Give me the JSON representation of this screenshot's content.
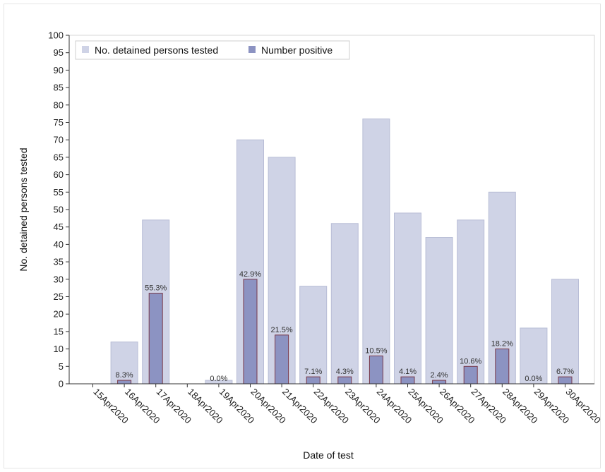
{
  "chart_data": {
    "type": "bar",
    "xlabel": "Date of test",
    "ylabel": "No. detained persons tested",
    "ylim": [
      0,
      100
    ],
    "yticks": [
      0,
      5,
      10,
      15,
      20,
      25,
      30,
      35,
      40,
      45,
      50,
      55,
      60,
      65,
      70,
      75,
      80,
      85,
      90,
      95,
      100
    ],
    "categories": [
      "15Apr2020",
      "16Apr2020",
      "17Apr2020",
      "18Apr2020",
      "19Apr2020",
      "20Apr2020",
      "21Apr2020",
      "22Apr2020",
      "23Apr2020",
      "24Apr2020",
      "25Apr2020",
      "26Apr2020",
      "27Apr2020",
      "28Apr2020",
      "29Apr2020",
      "30Apr2020"
    ],
    "series": [
      {
        "name": "No. detained persons tested",
        "color": "#cfd3e6",
        "values": [
          0,
          12,
          47,
          0,
          1,
          70,
          65,
          28,
          46,
          76,
          49,
          42,
          47,
          55,
          16,
          30
        ]
      },
      {
        "name": "Number positive",
        "color": "#8c93c2",
        "values": [
          0,
          1,
          26,
          0,
          0,
          30,
          14,
          2,
          2,
          8,
          2,
          1,
          5,
          10,
          0,
          2
        ]
      }
    ],
    "data_labels": [
      "",
      "8.3%",
      "55.3%",
      "",
      "0.0%",
      "42.9%",
      "21.5%",
      "7.1%",
      "4.3%",
      "10.5%",
      "4.1%",
      "2.4%",
      "10.6%",
      "18.2%",
      "0.0%",
      "6.7%"
    ],
    "legend_position": "top-left",
    "grid": false
  }
}
